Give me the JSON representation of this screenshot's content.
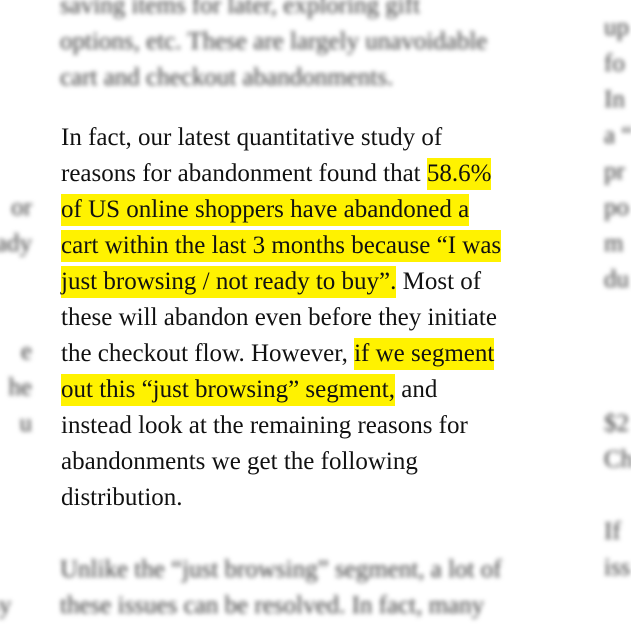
{
  "main_paragraph": {
    "lines": [
      [
        {
          "t": "In fact, our latest quantitative study of",
          "h": false
        }
      ],
      [
        {
          "t": "reasons for abandonment found that ",
          "h": false
        },
        {
          "t": "58.6%",
          "h": true
        }
      ],
      [
        {
          "t": "of US online shoppers have abandoned a",
          "h": true
        }
      ],
      [
        {
          "t": "cart within the last 3 months because “I was",
          "h": true
        }
      ],
      [
        {
          "t": "just browsing / not ready to buy”.",
          "h": true
        },
        {
          "t": " Most of",
          "h": false
        }
      ],
      [
        {
          "t": "these will abandon even before they initiate",
          "h": false
        }
      ],
      [
        {
          "t": "the checkout flow. However, ",
          "h": false
        },
        {
          "t": "if we segment",
          "h": true
        }
      ],
      [
        {
          "t": "out this “just browsing” segment,",
          "h": true
        },
        {
          "t": " and",
          "h": false
        }
      ],
      [
        {
          "t": "instead look at the remaining reasons for",
          "h": false
        }
      ],
      [
        {
          "t": "abandonments we get the following",
          "h": false
        }
      ],
      [
        {
          "t": "distribution.",
          "h": false
        }
      ]
    ]
  },
  "blurred_top": {
    "lines": [
      "saving items for later, exploring gift",
      "options, etc. These are largely unavoidable",
      "cart and checkout abandonments."
    ]
  },
  "blurred_bottom": {
    "lines": [
      "Unlike the “just browsing” segment, a lot of",
      "these issues can be resolved. In fact, many"
    ]
  },
  "blurred_left": {
    "lines": [
      "or",
      "ady",
      "",
      "",
      "e",
      "he",
      "u"
    ]
  },
  "blurred_left_bottom": {
    "lines": [
      "asy"
    ]
  },
  "blurred_right": {
    "lines": [
      "up",
      "fo",
      "In",
      "a “",
      "pr",
      "po",
      "m",
      "du",
      "",
      "",
      "",
      "$2",
      "Ch",
      "",
      "If",
      "iss"
    ]
  }
}
